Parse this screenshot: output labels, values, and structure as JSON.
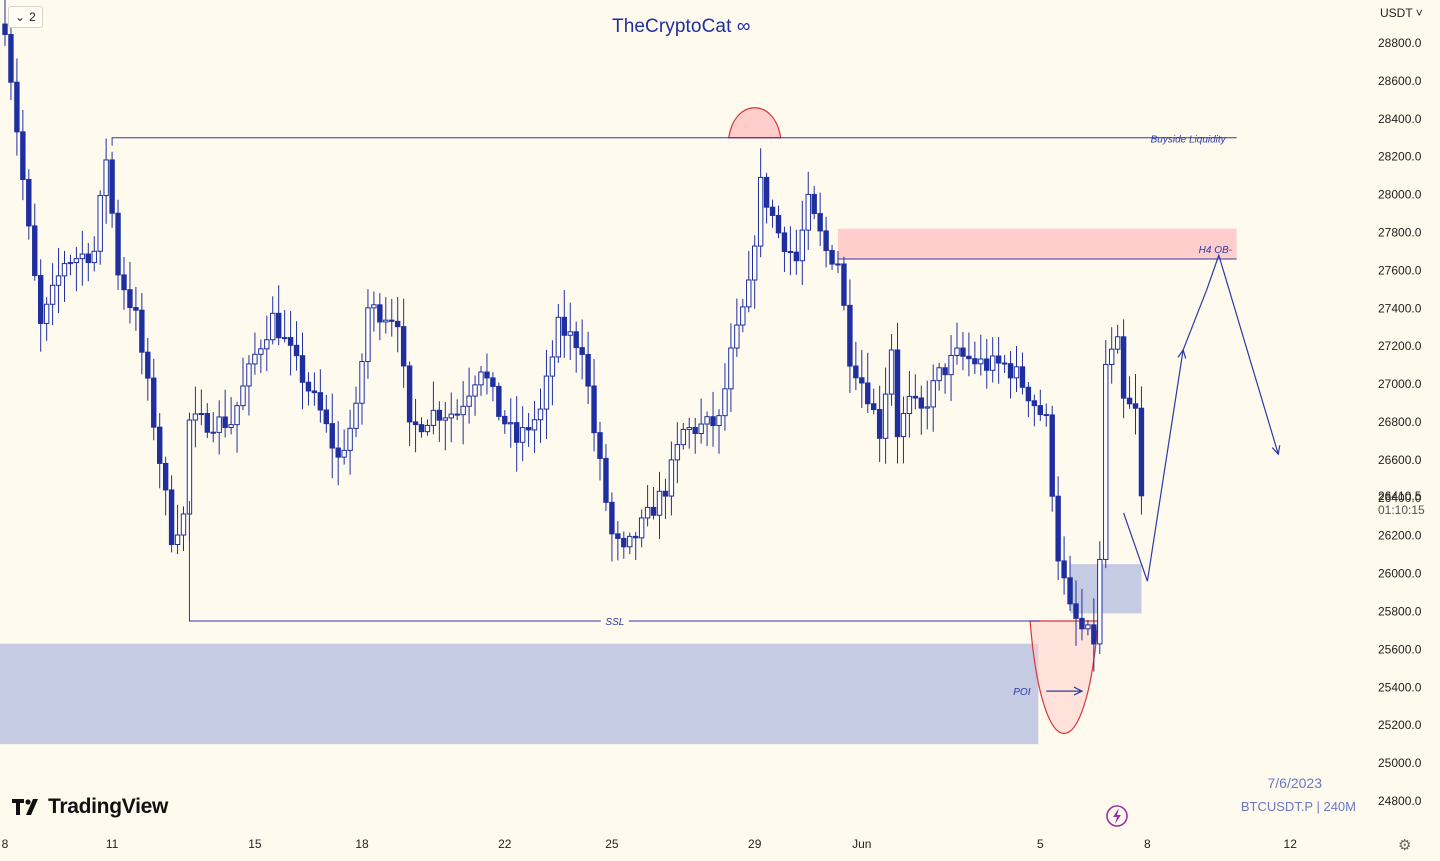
{
  "header": {
    "interval_count": "2",
    "watermark": "TheCryptoCat ∞",
    "currency": "USDT"
  },
  "price_panel": {
    "last_price": "26410.5",
    "countdown": "01:10:15"
  },
  "footer": {
    "brand": "TradingView",
    "date": "7/6/2023",
    "symbol": "BTCUSDT.P | 240M"
  },
  "colors": {
    "background": "#fefaee",
    "candle": "#1f2fa0",
    "zone_blue": "#c5cbe2",
    "zone_red": "#ffcdcb",
    "red_line": "#d9363e",
    "annotation": "#2b3aa6"
  },
  "chart_data": {
    "type": "candlestick",
    "symbol": "BTCUSDT.P",
    "interval": "240M",
    "y_axis": {
      "ticks": [
        "28800.0",
        "28600.0",
        "28400.0",
        "28200.0",
        "28000.0",
        "27800.0",
        "27600.0",
        "27400.0",
        "27200.0",
        "27000.0",
        "26800.0",
        "26600.0",
        "26400.0",
        "26200.0",
        "26000.0",
        "25800.0",
        "25600.0",
        "25400.0",
        "25200.0",
        "25000.0",
        "24800.0"
      ]
    },
    "x_axis": {
      "labels": [
        {
          "label": "8",
          "bar": 0
        },
        {
          "label": "11",
          "bar": 18
        },
        {
          "label": "15",
          "bar": 42
        },
        {
          "label": "18",
          "bar": 60
        },
        {
          "label": "22",
          "bar": 84
        },
        {
          "label": "25",
          "bar": 102
        },
        {
          "label": "29",
          "bar": 126
        },
        {
          "label": "Jun",
          "bar": 144
        },
        {
          "label": "5",
          "bar": 174
        },
        {
          "label": "8",
          "bar": 192
        },
        {
          "label": "12",
          "bar": 216
        }
      ]
    },
    "key_points": [
      {
        "bar": 0,
        "price": 28900
      },
      {
        "bar": 4,
        "price": 27800
      },
      {
        "bar": 6,
        "price": 27300
      },
      {
        "bar": 10,
        "price": 27650
      },
      {
        "bar": 15,
        "price": 27700
      },
      {
        "bar": 17,
        "price": 28200
      },
      {
        "bar": 19,
        "price": 27600
      },
      {
        "bar": 22,
        "price": 27350
      },
      {
        "bar": 25,
        "price": 26800
      },
      {
        "bar": 28,
        "price": 26200
      },
      {
        "bar": 30,
        "price": 26300
      },
      {
        "bar": 31,
        "price": 26800
      },
      {
        "bar": 38,
        "price": 26800
      },
      {
        "bar": 42,
        "price": 27150
      },
      {
        "bar": 45,
        "price": 27350
      },
      {
        "bar": 49,
        "price": 27100
      },
      {
        "bar": 53,
        "price": 26850
      },
      {
        "bar": 56,
        "price": 26600
      },
      {
        "bar": 59,
        "price": 26850
      },
      {
        "bar": 61,
        "price": 27400
      },
      {
        "bar": 66,
        "price": 27350
      },
      {
        "bar": 68,
        "price": 26750
      },
      {
        "bar": 72,
        "price": 26850
      },
      {
        "bar": 76,
        "price": 26850
      },
      {
        "bar": 80,
        "price": 27100
      },
      {
        "bar": 83,
        "price": 26850
      },
      {
        "bar": 86,
        "price": 26700
      },
      {
        "bar": 90,
        "price": 26850
      },
      {
        "bar": 93,
        "price": 27300
      },
      {
        "bar": 97,
        "price": 27200
      },
      {
        "bar": 99,
        "price": 26750
      },
      {
        "bar": 102,
        "price": 26200
      },
      {
        "bar": 104,
        "price": 26100
      },
      {
        "bar": 107,
        "price": 26250
      },
      {
        "bar": 111,
        "price": 26450
      },
      {
        "bar": 114,
        "price": 26750
      },
      {
        "bar": 120,
        "price": 26800
      },
      {
        "bar": 122,
        "price": 27150
      },
      {
        "bar": 125,
        "price": 27500
      },
      {
        "bar": 127,
        "price": 28050
      },
      {
        "bar": 130,
        "price": 27800
      },
      {
        "bar": 133,
        "price": 27650
      },
      {
        "bar": 135,
        "price": 27950
      },
      {
        "bar": 138,
        "price": 27700
      },
      {
        "bar": 140,
        "price": 27650
      },
      {
        "bar": 142,
        "price": 27150
      },
      {
        "bar": 145,
        "price": 26950
      },
      {
        "bar": 147,
        "price": 26750
      },
      {
        "bar": 149,
        "price": 27200
      },
      {
        "bar": 150,
        "price": 26750
      },
      {
        "bar": 152,
        "price": 26900
      },
      {
        "bar": 154,
        "price": 26850
      },
      {
        "bar": 157,
        "price": 27050
      },
      {
        "bar": 160,
        "price": 27150
      },
      {
        "bar": 165,
        "price": 27100
      },
      {
        "bar": 168,
        "price": 27100
      },
      {
        "bar": 170,
        "price": 27050
      },
      {
        "bar": 173,
        "price": 26900
      },
      {
        "bar": 175,
        "price": 26800
      },
      {
        "bar": 177,
        "price": 26100
      },
      {
        "bar": 179,
        "price": 25800
      },
      {
        "bar": 181,
        "price": 25700
      },
      {
        "bar": 183,
        "price": 25650
      },
      {
        "bar": 184,
        "price": 26050
      },
      {
        "bar": 185,
        "price": 27100
      },
      {
        "bar": 187,
        "price": 27200
      },
      {
        "bar": 188,
        "price": 26900
      },
      {
        "bar": 190,
        "price": 26850
      },
      {
        "bar": 191,
        "price": 26410.5
      }
    ],
    "annotations": {
      "texts": [
        "Buyside Liquidity",
        "H4 OB-",
        "SSL",
        "POI"
      ],
      "buyside_liquidity": {
        "price": 28300,
        "from_bar": 18,
        "to_bar": 207
      },
      "h4_ob_zone": {
        "top": 27820,
        "bottom": 27660,
        "from_bar": 140,
        "to_bar": 207
      },
      "ssl": {
        "price": 25750,
        "from_bar": 31,
        "to_bar": 174
      },
      "poi_zone": {
        "top": 25630,
        "bottom": 25100,
        "from_bar": 0,
        "to_bar": 173
      },
      "fvg_zone": {
        "top": 26050,
        "bottom": 25790,
        "from_bar": 179,
        "to_bar": 191
      },
      "red_arc_top": {
        "bar": 126,
        "price": 28300
      },
      "red_arc_bottom": {
        "bar": 178,
        "price": 25750
      },
      "poi_arrow": {
        "price": 25380,
        "from_bar": 175,
        "to_bar": 181
      },
      "projection_path": [
        {
          "bar": 188,
          "price": 26320
        },
        {
          "bar": 192,
          "price": 25960
        },
        {
          "bar": 198,
          "price": 27180
        },
        {
          "bar": 202,
          "price": 27500
        },
        {
          "bar": 204,
          "price": 27680
        },
        {
          "bar": 214,
          "price": 26630
        }
      ]
    }
  }
}
